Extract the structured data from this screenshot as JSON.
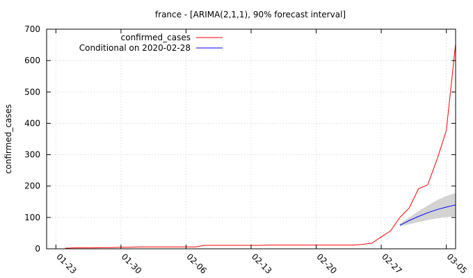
{
  "chart_data": {
    "type": "line",
    "title": "france -  [ARIMA(2,1,1), 90% forecast interval]",
    "ylabel": "confirmed_cases",
    "xlabel": "",
    "ylim": [
      0,
      700
    ],
    "yticks": [
      0,
      100,
      200,
      300,
      400,
      500,
      600,
      700
    ],
    "x_start": "2020-01-22",
    "x_end": "2020-03-06",
    "xticks": [
      {
        "date": "2020-01-23",
        "label": "01-23"
      },
      {
        "date": "2020-01-30",
        "label": "01-30"
      },
      {
        "date": "2020-02-06",
        "label": "02-06"
      },
      {
        "date": "2020-02-13",
        "label": "02-13"
      },
      {
        "date": "2020-02-20",
        "label": "02-20"
      },
      {
        "date": "2020-02-27",
        "label": "02-27"
      },
      {
        "date": "2020-03-05",
        "label": "03-05"
      }
    ],
    "grid": true,
    "legend_position": "top-left",
    "series": [
      {
        "name": "confirmed_cases",
        "color": "#ff0000",
        "points": [
          [
            "2020-01-24",
            2
          ],
          [
            "2020-01-25",
            3
          ],
          [
            "2020-01-26",
            3
          ],
          [
            "2020-01-27",
            3
          ],
          [
            "2020-01-28",
            4
          ],
          [
            "2020-01-29",
            4
          ],
          [
            "2020-01-30",
            5
          ],
          [
            "2020-01-31",
            5
          ],
          [
            "2020-02-01",
            6
          ],
          [
            "2020-02-02",
            6
          ],
          [
            "2020-02-03",
            6
          ],
          [
            "2020-02-04",
            6
          ],
          [
            "2020-02-05",
            6
          ],
          [
            "2020-02-06",
            6
          ],
          [
            "2020-02-07",
            6
          ],
          [
            "2020-02-08",
            11
          ],
          [
            "2020-02-09",
            11
          ],
          [
            "2020-02-10",
            11
          ],
          [
            "2020-02-11",
            11
          ],
          [
            "2020-02-12",
            11
          ],
          [
            "2020-02-13",
            11
          ],
          [
            "2020-02-14",
            11
          ],
          [
            "2020-02-15",
            12
          ],
          [
            "2020-02-16",
            12
          ],
          [
            "2020-02-17",
            12
          ],
          [
            "2020-02-18",
            12
          ],
          [
            "2020-02-19",
            12
          ],
          [
            "2020-02-20",
            12
          ],
          [
            "2020-02-21",
            12
          ],
          [
            "2020-02-22",
            12
          ],
          [
            "2020-02-23",
            12
          ],
          [
            "2020-02-24",
            12
          ],
          [
            "2020-02-25",
            14
          ],
          [
            "2020-02-26",
            18
          ],
          [
            "2020-02-27",
            38
          ],
          [
            "2020-02-28",
            57
          ],
          [
            "2020-02-29",
            100
          ],
          [
            "2020-03-01",
            130
          ],
          [
            "2020-03-02",
            191
          ],
          [
            "2020-03-03",
            204
          ],
          [
            "2020-03-04",
            285
          ],
          [
            "2020-03-05",
            377
          ],
          [
            "2020-03-06",
            653
          ]
        ]
      },
      {
        "name": "Conditional on 2020-02-28",
        "color": "#0000ff",
        "points": [
          [
            "2020-02-29",
            75
          ],
          [
            "2020-03-01",
            90
          ],
          [
            "2020-03-02",
            103
          ],
          [
            "2020-03-03",
            115
          ],
          [
            "2020-03-04",
            125
          ],
          [
            "2020-03-05",
            133
          ],
          [
            "2020-03-06",
            140
          ]
        ],
        "interval_lower": [
          72,
          78,
          85,
          92,
          97,
          101,
          104
        ],
        "interval_upper": [
          80,
          100,
          120,
          138,
          155,
          168,
          178
        ],
        "interval_color": "#d3d3d3"
      }
    ]
  }
}
